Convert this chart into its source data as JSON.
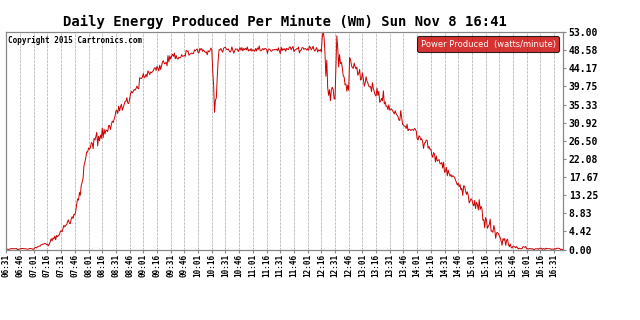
{
  "title": "Daily Energy Produced Per Minute (Wm) Sun Nov 8 16:41",
  "copyright": "Copyright 2015 Cartronics.com",
  "legend_label": "Power Produced  (watts/minute)",
  "legend_bg": "#cc0000",
  "legend_text_color": "#ffffff",
  "line_color": "#cc0000",
  "bg_color": "#ffffff",
  "grid_color": "#c0c0c0",
  "title_color": "#000000",
  "copyright_color": "#000000",
  "ylabel_right_values": [
    0.0,
    4.42,
    8.83,
    13.25,
    17.67,
    22.08,
    26.5,
    30.92,
    35.33,
    39.75,
    44.17,
    48.58,
    53.0
  ],
  "ymax": 53.0,
  "ymin": 0.0,
  "x_tick_labels": [
    "06:31",
    "06:46",
    "07:01",
    "07:16",
    "07:31",
    "07:46",
    "08:01",
    "08:16",
    "08:31",
    "08:46",
    "09:01",
    "09:16",
    "09:31",
    "09:46",
    "10:01",
    "10:16",
    "10:31",
    "10:46",
    "11:01",
    "11:16",
    "11:31",
    "11:46",
    "12:01",
    "12:16",
    "12:31",
    "12:46",
    "13:01",
    "13:16",
    "13:31",
    "13:46",
    "14:01",
    "14:16",
    "14:31",
    "14:46",
    "15:01",
    "15:16",
    "15:31",
    "15:46",
    "16:01",
    "16:16",
    "16:31"
  ]
}
